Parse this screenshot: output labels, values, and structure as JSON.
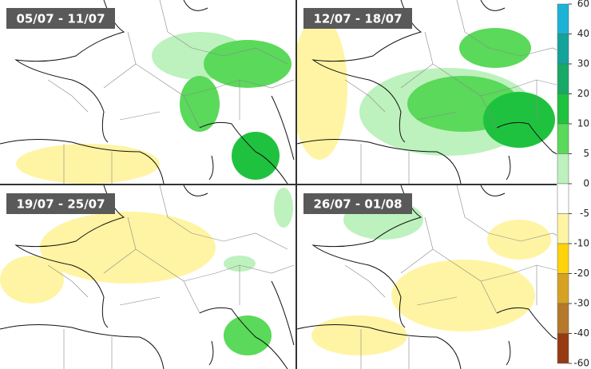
{
  "panels": [
    {
      "label": "05/07 - 11/07"
    },
    {
      "label": "12/07 - 18/07"
    },
    {
      "label": "19/07 - 25/07"
    },
    {
      "label": "26/07 - 01/08"
    }
  ],
  "legend": {
    "ticks": [
      60,
      40,
      30,
      20,
      10,
      5,
      0,
      -5,
      -10,
      -20,
      -30,
      -40,
      -60
    ],
    "colors": [
      "#1cb2d6",
      "#12a39a",
      "#17a965",
      "#1fc23e",
      "#5ad95a",
      "#bdf1bd",
      "#ffffff",
      "#fff4a3",
      "#ffd20a",
      "#d5a223",
      "#b6782a",
      "#963a12"
    ]
  }
}
